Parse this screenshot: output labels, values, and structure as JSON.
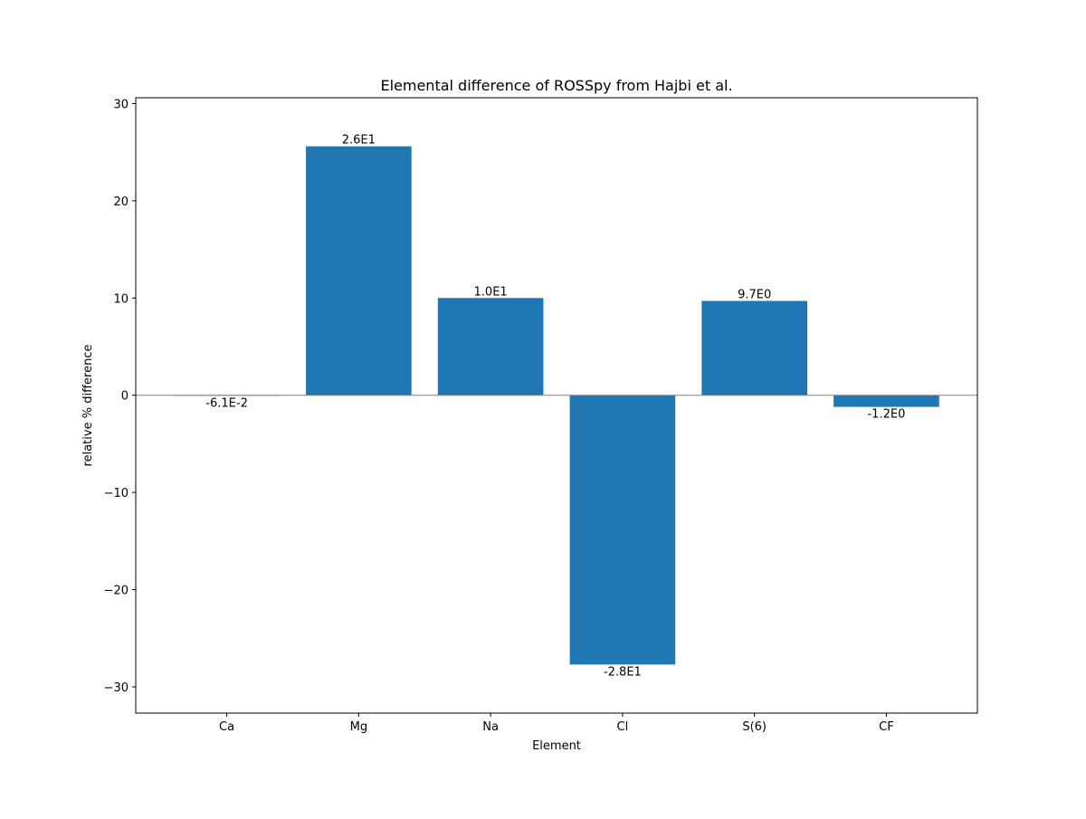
{
  "chart_data": {
    "type": "bar",
    "title": "Elemental difference of ROSSpy from Hajbi et al.",
    "xlabel": "Element",
    "ylabel": "relative % difference",
    "categories": [
      "Ca",
      "Mg",
      "Na",
      "Cl",
      "S(6)",
      "CF"
    ],
    "values": [
      -0.061,
      25.6,
      10.0,
      -27.7,
      9.7,
      -1.2
    ],
    "bar_labels": [
      "-6.1E-2",
      "2.6E1",
      "1.0E1",
      "-2.8E1",
      "9.7E0",
      "-1.2E0"
    ],
    "ylim": [
      -32.7,
      30.6
    ],
    "yticks": [
      -30,
      -20,
      -10,
      0,
      10,
      20,
      30
    ],
    "ytick_labels": [
      "−30",
      "−20",
      "−10",
      "0",
      "10",
      "20",
      "30"
    ],
    "zero_line": true,
    "grid": false,
    "bar_color": "#1f77b4",
    "zero_line_color": "#808080"
  }
}
